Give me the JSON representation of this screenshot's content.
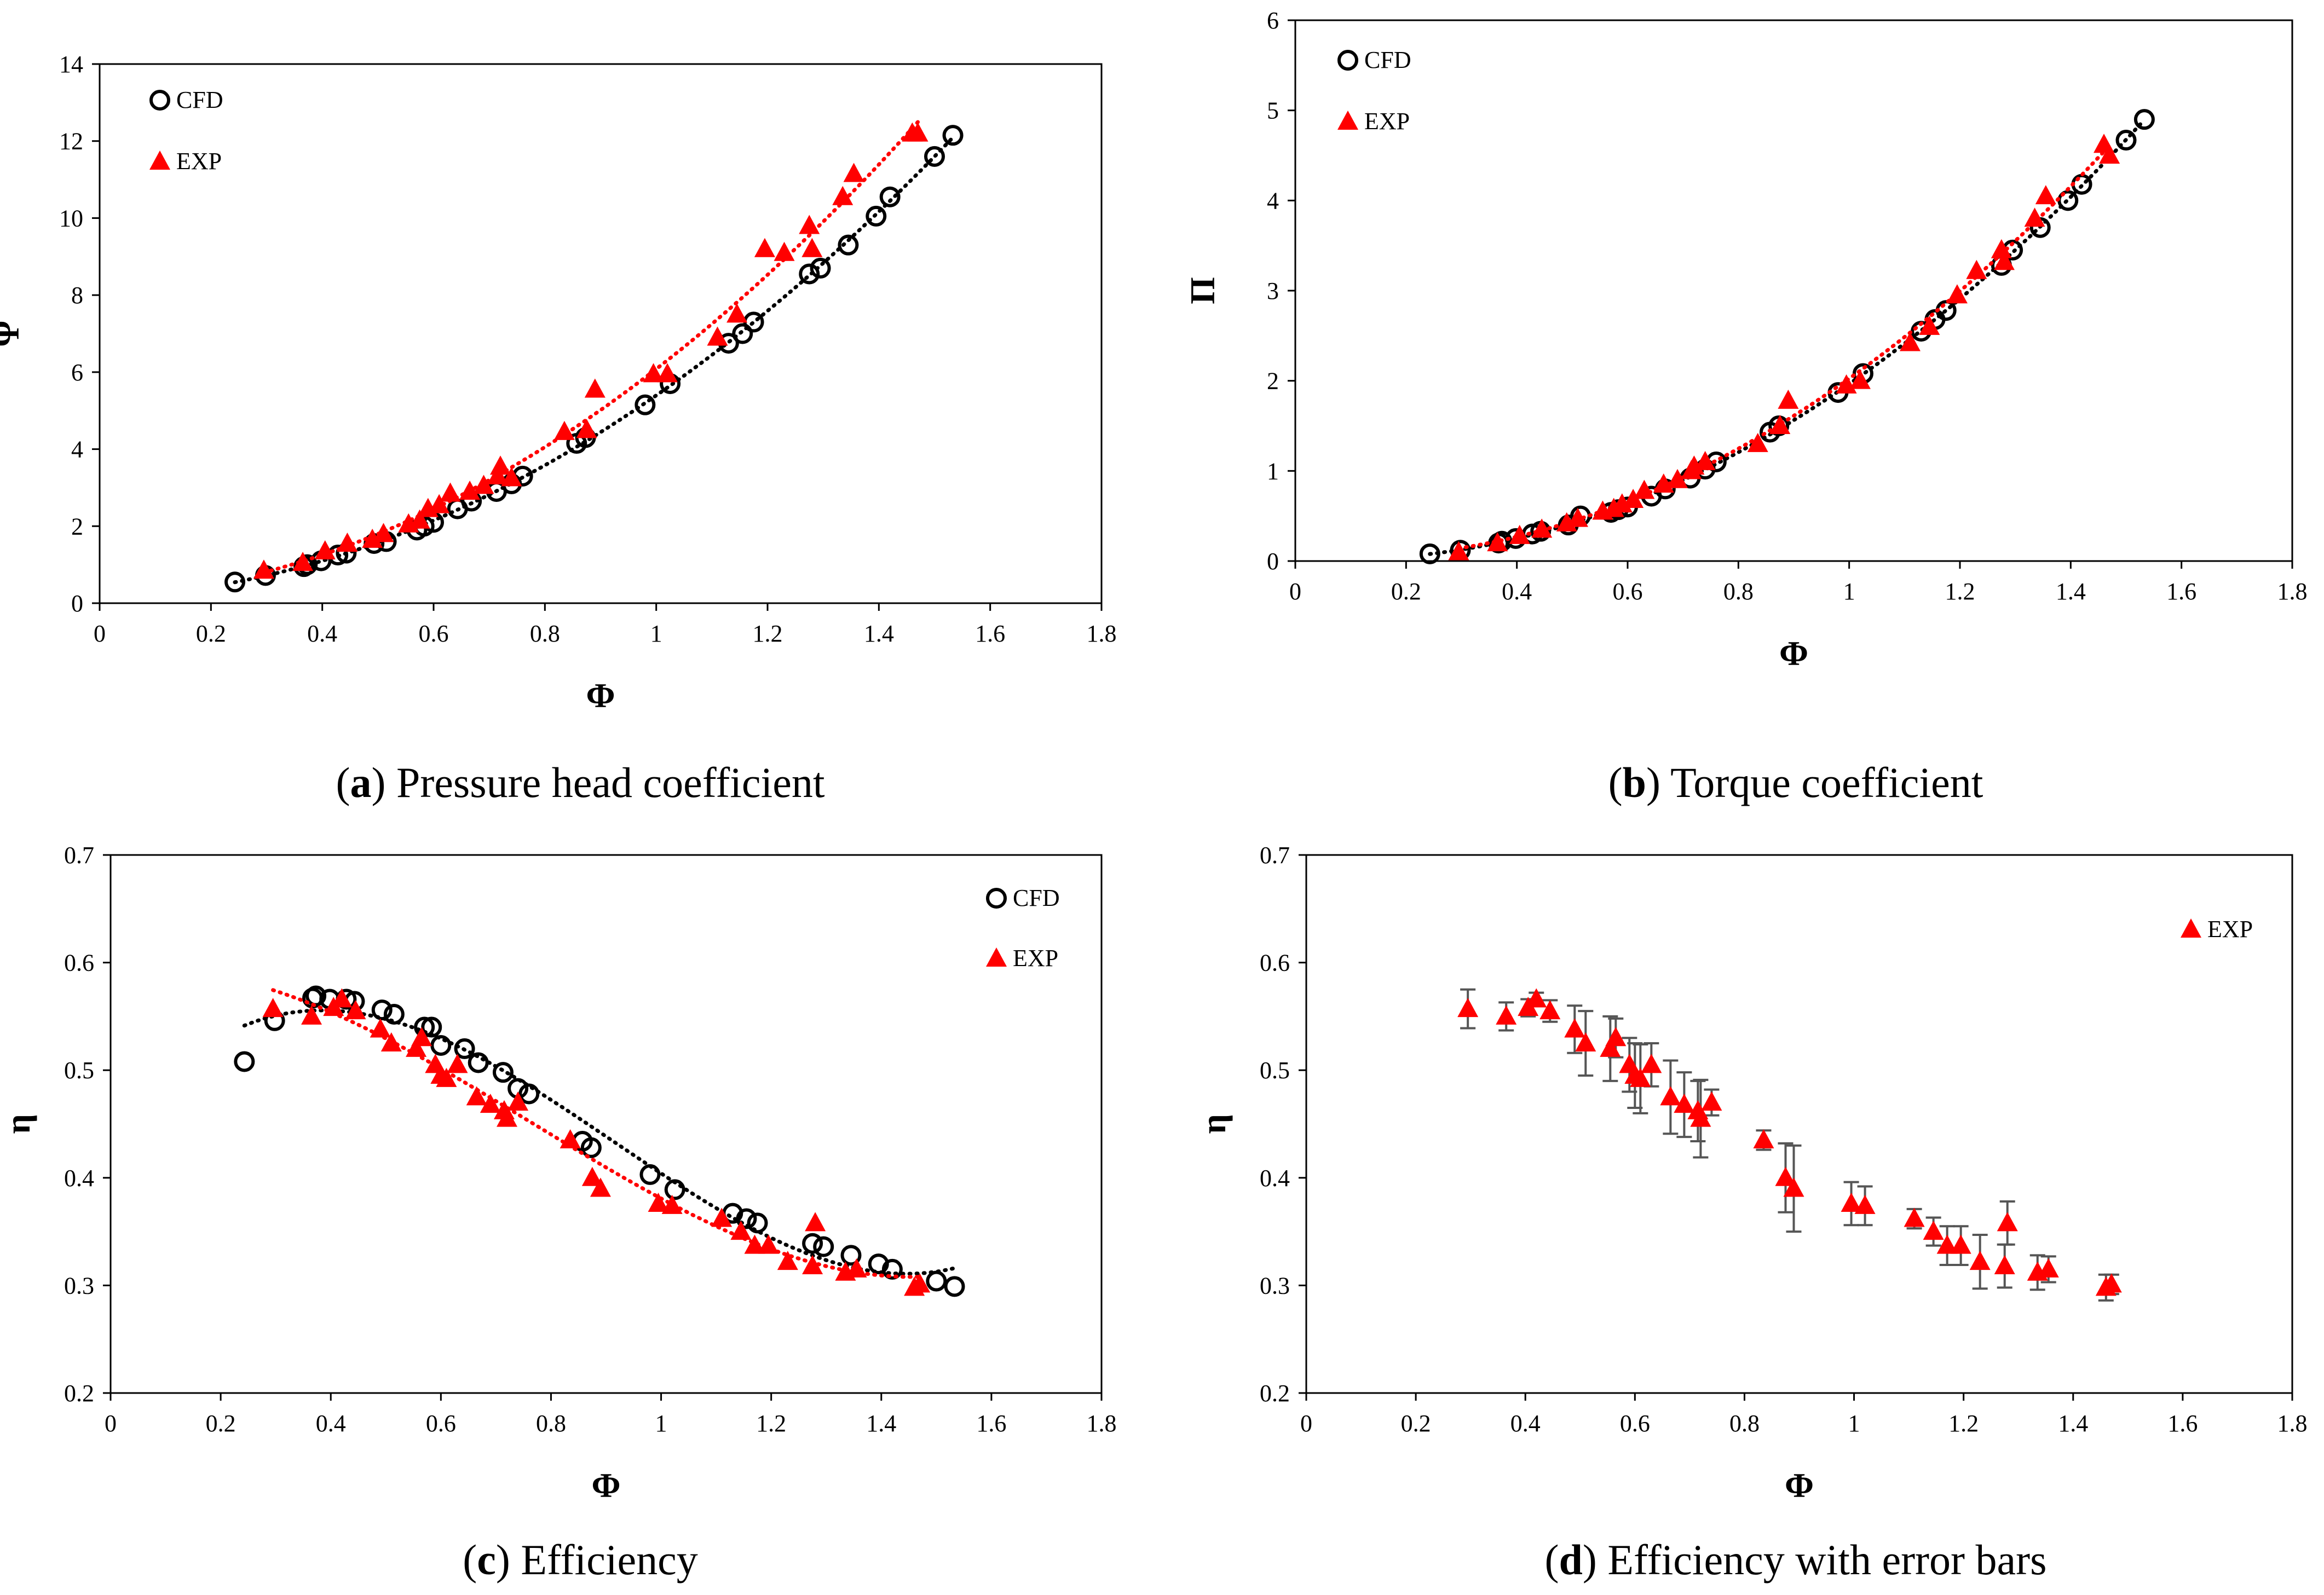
{
  "figure": {
    "captions": [
      {
        "letter": "a",
        "open": "(",
        "close": ")",
        "text": "Pressure head coefficient"
      },
      {
        "letter": "b",
        "open": "(",
        "close": ")",
        "text": "Torque coefficient"
      },
      {
        "letter": "c",
        "open": "(",
        "close": ")",
        "text": "Efficiency"
      },
      {
        "letter": "d",
        "open": "(",
        "close": ")",
        "text": "Efficiency with error bars"
      }
    ]
  },
  "chart_data": [
    {
      "id": "a",
      "type": "scatter",
      "title": "",
      "xlabel": "Φ",
      "ylabel": "Ψ",
      "xlim": [
        0,
        1.8
      ],
      "ylim": [
        0,
        14
      ],
      "xticks": [
        "0",
        "0.2",
        "0.4",
        "0.6",
        "0.8",
        "1",
        "1.2",
        "1.4",
        "1.6",
        "1.8"
      ],
      "yticks": [
        "0",
        "2",
        "4",
        "6",
        "8",
        "10",
        "12",
        "14"
      ],
      "grid": false,
      "legend_position": "top-left",
      "series": [
        {
          "name": "CFD",
          "marker": "circle",
          "color": "#000000",
          "trendline": {
            "type": "poly2",
            "color": "#000000"
          },
          "x": [
            0.243,
            0.298,
            0.367,
            0.373,
            0.398,
            0.428,
            0.443,
            0.493,
            0.515,
            0.57,
            0.583,
            0.6,
            0.643,
            0.668,
            0.713,
            0.74,
            0.76,
            0.857,
            0.873,
            0.98,
            1.025,
            1.13,
            1.155,
            1.175,
            1.275,
            1.295,
            1.345,
            1.395,
            1.42,
            1.5,
            1.533
          ],
          "y": [
            0.55,
            0.72,
            0.95,
            1.0,
            1.1,
            1.25,
            1.3,
            1.55,
            1.6,
            1.9,
            2.0,
            2.1,
            2.45,
            2.65,
            2.9,
            3.1,
            3.3,
            4.15,
            4.3,
            5.15,
            5.7,
            6.75,
            7.0,
            7.3,
            8.55,
            8.7,
            9.3,
            10.05,
            10.55,
            11.6,
            12.15
          ]
        },
        {
          "name": "EXP",
          "marker": "triangle",
          "color": "#ff0000",
          "trendline": {
            "type": "poly2",
            "color": "#ff0000"
          },
          "x": [
            0.295,
            0.365,
            0.405,
            0.445,
            0.49,
            0.51,
            0.555,
            0.575,
            0.59,
            0.61,
            0.63,
            0.665,
            0.69,
            0.715,
            0.72,
            0.74,
            0.835,
            0.875,
            0.89,
            0.995,
            1.02,
            1.11,
            1.145,
            1.195,
            1.23,
            1.275,
            1.28,
            1.335,
            1.355,
            1.46,
            1.47
          ],
          "y": [
            0.85,
            1.05,
            1.35,
            1.55,
            1.65,
            1.8,
            2.05,
            2.15,
            2.45,
            2.55,
            2.85,
            2.9,
            3.05,
            3.3,
            3.55,
            3.25,
            4.45,
            4.5,
            5.55,
            5.95,
            5.95,
            6.9,
            7.5,
            9.2,
            9.1,
            9.8,
            9.2,
            10.55,
            11.15,
            12.2,
            12.2
          ]
        }
      ]
    },
    {
      "id": "b",
      "type": "scatter",
      "title": "",
      "xlabel": "Φ",
      "ylabel": "Π",
      "xlim": [
        0,
        1.8
      ],
      "ylim": [
        0,
        6
      ],
      "xticks": [
        "0",
        "0.2",
        "0.4",
        "0.6",
        "0.8",
        "1",
        "1.2",
        "1.4",
        "1.6",
        "1.8"
      ],
      "yticks": [
        "0",
        "1",
        "2",
        "3",
        "4",
        "5",
        "6"
      ],
      "grid": false,
      "legend_position": "top-left",
      "series": [
        {
          "name": "CFD",
          "marker": "circle",
          "color": "#000000",
          "trendline": {
            "type": "poly2",
            "color": "#000000"
          },
          "x": [
            0.243,
            0.298,
            0.367,
            0.373,
            0.398,
            0.428,
            0.443,
            0.493,
            0.515,
            0.57,
            0.583,
            0.6,
            0.643,
            0.668,
            0.713,
            0.74,
            0.76,
            0.857,
            0.873,
            0.98,
            1.025,
            1.13,
            1.155,
            1.175,
            1.275,
            1.295,
            1.345,
            1.395,
            1.42,
            1.5,
            1.533
          ],
          "y": [
            0.08,
            0.12,
            0.2,
            0.22,
            0.25,
            0.3,
            0.33,
            0.4,
            0.5,
            0.54,
            0.57,
            0.6,
            0.72,
            0.8,
            0.92,
            1.02,
            1.1,
            1.43,
            1.5,
            1.87,
            2.08,
            2.55,
            2.68,
            2.78,
            3.28,
            3.45,
            3.7,
            4.0,
            4.18,
            4.67,
            4.9
          ]
        },
        {
          "name": "EXP",
          "marker": "triangle",
          "color": "#ff0000",
          "trendline": {
            "type": "poly2",
            "color": "#ff0000"
          },
          "x": [
            0.295,
            0.365,
            0.405,
            0.445,
            0.49,
            0.51,
            0.555,
            0.575,
            0.59,
            0.61,
            0.63,
            0.665,
            0.69,
            0.715,
            0.72,
            0.74,
            0.835,
            0.875,
            0.89,
            0.995,
            1.02,
            1.11,
            1.145,
            1.195,
            1.23,
            1.275,
            1.28,
            1.335,
            1.355,
            1.46,
            1.47
          ],
          "y": [
            0.1,
            0.2,
            0.28,
            0.35,
            0.42,
            0.47,
            0.55,
            0.58,
            0.63,
            0.68,
            0.78,
            0.85,
            0.9,
            1.0,
            1.05,
            1.1,
            1.3,
            1.5,
            1.78,
            1.95,
            2.0,
            2.42,
            2.6,
            2.95,
            3.22,
            3.45,
            3.32,
            3.8,
            4.05,
            4.62,
            4.5
          ]
        }
      ]
    },
    {
      "id": "c",
      "type": "scatter",
      "title": "",
      "xlabel": "Φ",
      "ylabel": "η",
      "xlim": [
        0,
        1.8
      ],
      "ylim": [
        0.2,
        0.7
      ],
      "xticks": [
        "0",
        "0.2",
        "0.4",
        "0.6",
        "0.8",
        "1",
        "1.2",
        "1.4",
        "1.6",
        "1.8"
      ],
      "yticks": [
        "0.2",
        "0.3",
        "0.4",
        "0.5",
        "0.6",
        "0.7"
      ],
      "grid": false,
      "legend_position": "top-right",
      "series": [
        {
          "name": "CFD",
          "marker": "circle",
          "color": "#000000",
          "trendline": {
            "type": "poly3",
            "color": "#000000"
          },
          "x": [
            0.243,
            0.298,
            0.367,
            0.373,
            0.398,
            0.428,
            0.443,
            0.493,
            0.515,
            0.57,
            0.583,
            0.6,
            0.643,
            0.668,
            0.713,
            0.74,
            0.76,
            0.857,
            0.873,
            0.98,
            1.025,
            1.13,
            1.155,
            1.175,
            1.275,
            1.295,
            1.345,
            1.395,
            1.42,
            1.5,
            1.533
          ],
          "y": [
            0.508,
            0.546,
            0.567,
            0.569,
            0.566,
            0.566,
            0.564,
            0.556,
            0.552,
            0.54,
            0.54,
            0.523,
            0.52,
            0.507,
            0.498,
            0.483,
            0.478,
            0.434,
            0.428,
            0.403,
            0.389,
            0.367,
            0.362,
            0.358,
            0.339,
            0.336,
            0.328,
            0.32,
            0.315,
            0.304,
            0.299
          ]
        },
        {
          "name": "EXP",
          "marker": "triangle",
          "color": "#ff0000",
          "trendline": {
            "type": "poly3",
            "color": "#ff0000"
          },
          "x": [
            0.295,
            0.365,
            0.405,
            0.42,
            0.445,
            0.49,
            0.51,
            0.555,
            0.565,
            0.59,
            0.6,
            0.61,
            0.63,
            0.665,
            0.69,
            0.715,
            0.72,
            0.74,
            0.835,
            0.875,
            0.89,
            0.995,
            1.02,
            1.11,
            1.145,
            1.17,
            1.195,
            1.23,
            1.275,
            1.28,
            1.335,
            1.355,
            1.46,
            1.47
          ],
          "y": [
            0.557,
            0.55,
            0.558,
            0.566,
            0.555,
            0.538,
            0.525,
            0.52,
            0.53,
            0.505,
            0.495,
            0.492,
            0.505,
            0.475,
            0.468,
            0.462,
            0.455,
            0.47,
            0.435,
            0.4,
            0.39,
            0.376,
            0.374,
            0.362,
            0.35,
            0.337,
            0.337,
            0.322,
            0.318,
            0.358,
            0.312,
            0.315,
            0.298,
            0.301
          ]
        }
      ]
    },
    {
      "id": "d",
      "type": "scatter",
      "title": "",
      "xlabel": "Φ",
      "ylabel": "η",
      "xlim": [
        0,
        1.8
      ],
      "ylim": [
        0.2,
        0.7
      ],
      "xticks": [
        "0",
        "0.2",
        "0.4",
        "0.6",
        "0.8",
        "1",
        "1.2",
        "1.4",
        "1.6",
        "1.8"
      ],
      "yticks": [
        "0.2",
        "0.3",
        "0.4",
        "0.5",
        "0.6",
        "0.7"
      ],
      "grid": false,
      "legend_position": "top-right",
      "series": [
        {
          "name": "EXP",
          "marker": "triangle",
          "color": "#ff0000",
          "error_bar_color": "#555555",
          "x": [
            0.295,
            0.365,
            0.405,
            0.42,
            0.445,
            0.49,
            0.51,
            0.555,
            0.565,
            0.59,
            0.6,
            0.61,
            0.63,
            0.665,
            0.69,
            0.715,
            0.72,
            0.74,
            0.835,
            0.875,
            0.89,
            0.995,
            1.02,
            1.11,
            1.145,
            1.17,
            1.195,
            1.23,
            1.275,
            1.28,
            1.335,
            1.355,
            1.46,
            1.47
          ],
          "y": [
            0.557,
            0.55,
            0.558,
            0.566,
            0.555,
            0.538,
            0.525,
            0.52,
            0.53,
            0.505,
            0.495,
            0.492,
            0.505,
            0.475,
            0.468,
            0.462,
            0.455,
            0.47,
            0.435,
            0.4,
            0.39,
            0.376,
            0.374,
            0.362,
            0.35,
            0.337,
            0.337,
            0.322,
            0.318,
            0.358,
            0.312,
            0.315,
            0.298,
            0.301
          ],
          "error": [
            0.018,
            0.013,
            0.008,
            0.006,
            0.01,
            0.022,
            0.03,
            0.03,
            0.018,
            0.025,
            0.03,
            0.032,
            0.02,
            0.034,
            0.03,
            0.028,
            0.036,
            0.012,
            0.009,
            0.032,
            0.04,
            0.02,
            0.018,
            0.009,
            0.013,
            0.018,
            0.018,
            0.025,
            0.02,
            0.02,
            0.016,
            0.012,
            0.012,
            0.009
          ]
        }
      ]
    }
  ]
}
